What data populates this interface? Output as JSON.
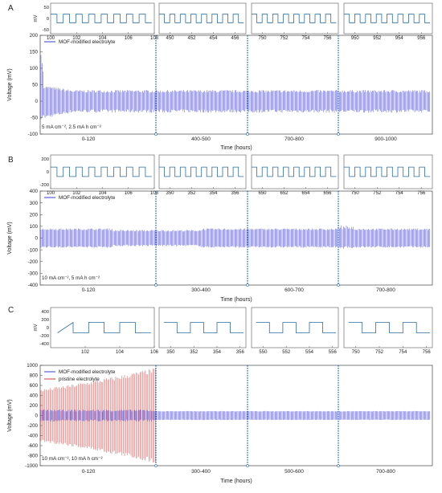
{
  "figure": {
    "panels": [
      {
        "letter": "A",
        "condition": "5 mA cm⁻², 2.5 mA h cm⁻²",
        "insets": [
          {
            "ticks": [
              "100",
              "102",
              "104",
              "106",
              "108"
            ],
            "range": [
              100,
              108
            ]
          },
          {
            "ticks": [
              "450",
              "452",
              "454",
              "456"
            ],
            "range": [
              449,
              457
            ]
          },
          {
            "ticks": [
              "750",
              "752",
              "754",
              "756"
            ],
            "range": [
              749,
              757
            ]
          },
          {
            "ticks": [
              "950",
              "952",
              "954",
              "956"
            ],
            "range": [
              949,
              957
            ]
          }
        ],
        "inset_ylabel": "mV",
        "inset_yticks": [
          "50",
          "0",
          "-50"
        ]
      },
      {
        "letter": "B",
        "condition": "10 mA cm⁻², 5 mA h cm⁻²",
        "insets": [
          {
            "ticks": [
              "100",
              "102",
              "104",
              "106",
              "108"
            ],
            "range": [
              100,
              108
            ]
          },
          {
            "ticks": [
              "350",
              "352",
              "354",
              "356"
            ],
            "range": [
              349,
              357
            ]
          },
          {
            "ticks": [
              "650",
              "652",
              "654",
              "656"
            ],
            "range": [
              649,
              657
            ]
          },
          {
            "ticks": [
              "750",
              "752",
              "754",
              "756"
            ],
            "range": [
              749,
              757
            ]
          }
        ],
        "inset_ylabel": "",
        "inset_yticks": [
          "200",
          "0",
          "-200"
        ]
      },
      {
        "letter": "C",
        "condition": "10 mA cm⁻², 10 mA h cm⁻²",
        "insets": [
          {
            "ticks": [
              "102",
              "104",
              "106"
            ],
            "range": [
              100,
              106
            ]
          },
          {
            "ticks": [
              "350",
              "352",
              "354",
              "356"
            ],
            "range": [
              349,
              356.5
            ]
          },
          {
            "ticks": [
              "550",
              "552",
              "554",
              "556"
            ],
            "range": [
              549,
              556.5
            ]
          },
          {
            "ticks": [
              "750",
              "752",
              "754",
              "756"
            ],
            "range": [
              749,
              756.5
            ]
          }
        ],
        "inset_ylabel": "mV",
        "inset_yticks": [
          "400",
          "200",
          "0",
          "-200",
          "-400"
        ]
      }
    ]
  },
  "chart_data": [
    {
      "type": "line",
      "panel": "A",
      "ylabel": "Voltage (mV)",
      "xlabel": "Time (hours)",
      "ylim": [
        -100,
        200
      ],
      "yticks": [
        200,
        150,
        100,
        50,
        0,
        -50,
        -100
      ],
      "segments": [
        "0-120",
        "400-500",
        "700-800",
        "900-1000"
      ],
      "series": [
        {
          "name": "MOF-modified electrolyte",
          "color": "#3b3bd9",
          "envelope": {
            "initial_mV": [
              -60,
              160
            ],
            "steady_mV": [
              -35,
              30
            ]
          }
        }
      ]
    },
    {
      "type": "line",
      "panel": "B",
      "ylabel": "Voltage (mV)",
      "xlabel": "Time (hours)",
      "ylim": [
        -400,
        400
      ],
      "yticks": [
        400,
        300,
        200,
        100,
        0,
        -100,
        -200,
        -300,
        -400
      ],
      "segments": [
        "0-120",
        "300-400",
        "600-700",
        "700-800"
      ],
      "series": [
        {
          "name": "MOF-modified electrolyte",
          "color": "#3b3bd9",
          "envelope": {
            "initial_mV": [
              -85,
              85
            ],
            "steady_mV": [
              -75,
              75
            ]
          }
        }
      ]
    },
    {
      "type": "line",
      "panel": "C",
      "ylabel": "Voltage (mV)",
      "xlabel": "Time (hours)",
      "ylim": [
        -1000,
        1000
      ],
      "yticks": [
        1000,
        800,
        600,
        400,
        200,
        0,
        -200,
        -400,
        -600,
        -800,
        -1000
      ],
      "segments": [
        "0-120",
        "300-400",
        "500-600",
        "700-800"
      ],
      "series": [
        {
          "name": "MOF-modified electrolyte",
          "color": "#3b3bd9",
          "envelope": {
            "initial_mV": [
              -100,
              100
            ],
            "steady_mV": [
              -90,
              90
            ]
          }
        },
        {
          "name": "pristine electrolyte",
          "color": "#d83c3c",
          "envelope": {
            "initial_mV": [
              -500,
              500
            ],
            "final_mV": [
              -900,
              900
            ]
          }
        }
      ]
    }
  ]
}
